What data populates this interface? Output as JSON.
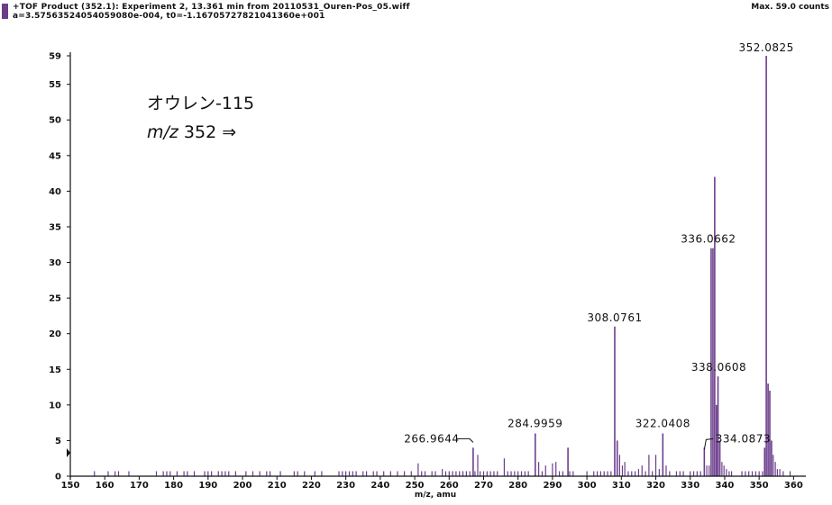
{
  "header": {
    "line1": "+TOF Product (352.1): Experiment 2, 13.361 min from 20110531_Ouren-Pos_05.wiff",
    "line2": "a=3.57563524054059080e-004, t0=-1.16705727821041360e+001",
    "max_counts": "Max. 59.0 counts"
  },
  "annotation": {
    "line1": "オウレン-115",
    "mz_italic": "m/z",
    "line2_rest": " 352 ⇒"
  },
  "colors": {
    "peak": "#6b3e8c",
    "axis": "#111111",
    "header_swatch": "#6a3f86"
  },
  "chart_data": {
    "type": "bar",
    "title": "",
    "xlabel": "m/z, amu",
    "ylabel": "",
    "xlim": [
      150,
      362
    ],
    "ylim": [
      0,
      59
    ],
    "x_ticks": [
      150,
      160,
      170,
      180,
      190,
      200,
      210,
      220,
      230,
      240,
      250,
      260,
      270,
      280,
      290,
      300,
      310,
      320,
      330,
      340,
      350,
      360
    ],
    "y_ticks": [
      0,
      5,
      10,
      15,
      20,
      25,
      30,
      35,
      40,
      45,
      50,
      55,
      59
    ],
    "peaks": [
      {
        "x": 157,
        "y": 0.7
      },
      {
        "x": 161,
        "y": 0.7
      },
      {
        "x": 163,
        "y": 0.7
      },
      {
        "x": 164,
        "y": 0.7
      },
      {
        "x": 167,
        "y": 0.7
      },
      {
        "x": 175,
        "y": 0.7
      },
      {
        "x": 177,
        "y": 0.7
      },
      {
        "x": 178,
        "y": 0.7
      },
      {
        "x": 179,
        "y": 0.7
      },
      {
        "x": 181,
        "y": 0.7
      },
      {
        "x": 183,
        "y": 0.7
      },
      {
        "x": 184,
        "y": 0.7
      },
      {
        "x": 186,
        "y": 0.7
      },
      {
        "x": 189,
        "y": 0.7
      },
      {
        "x": 190,
        "y": 0.7
      },
      {
        "x": 191,
        "y": 0.7
      },
      {
        "x": 193,
        "y": 0.7
      },
      {
        "x": 194,
        "y": 0.7
      },
      {
        "x": 195,
        "y": 0.7
      },
      {
        "x": 196,
        "y": 0.7
      },
      {
        "x": 198,
        "y": 0.7
      },
      {
        "x": 201,
        "y": 0.7
      },
      {
        "x": 203,
        "y": 0.7
      },
      {
        "x": 205,
        "y": 0.7
      },
      {
        "x": 207,
        "y": 0.7
      },
      {
        "x": 208,
        "y": 0.7
      },
      {
        "x": 211,
        "y": 0.7
      },
      {
        "x": 215,
        "y": 0.7
      },
      {
        "x": 216,
        "y": 0.7
      },
      {
        "x": 218,
        "y": 0.7
      },
      {
        "x": 221,
        "y": 0.7
      },
      {
        "x": 223,
        "y": 0.7
      },
      {
        "x": 228,
        "y": 0.7
      },
      {
        "x": 229,
        "y": 0.7
      },
      {
        "x": 230,
        "y": 0.7
      },
      {
        "x": 231,
        "y": 0.7
      },
      {
        "x": 232,
        "y": 0.7
      },
      {
        "x": 233,
        "y": 0.7
      },
      {
        "x": 235,
        "y": 0.7
      },
      {
        "x": 236,
        "y": 0.7
      },
      {
        "x": 238,
        "y": 0.7
      },
      {
        "x": 239,
        "y": 0.7
      },
      {
        "x": 241,
        "y": 0.7
      },
      {
        "x": 243,
        "y": 0.7
      },
      {
        "x": 245,
        "y": 0.7
      },
      {
        "x": 247,
        "y": 0.7
      },
      {
        "x": 249,
        "y": 0.7
      },
      {
        "x": 251,
        "y": 1.8
      },
      {
        "x": 252,
        "y": 0.7
      },
      {
        "x": 253,
        "y": 0.7
      },
      {
        "x": 255,
        "y": 0.7
      },
      {
        "x": 256,
        "y": 0.7
      },
      {
        "x": 258,
        "y": 1.0
      },
      {
        "x": 259,
        "y": 0.7
      },
      {
        "x": 260,
        "y": 0.7
      },
      {
        "x": 261,
        "y": 0.7
      },
      {
        "x": 262,
        "y": 0.7
      },
      {
        "x": 263,
        "y": 0.7
      },
      {
        "x": 264,
        "y": 0.7
      },
      {
        "x": 265,
        "y": 0.7
      },
      {
        "x": 266,
        "y": 0.7
      },
      {
        "x": 266.9644,
        "y": 4.0
      },
      {
        "x": 267.5,
        "y": 0.7
      },
      {
        "x": 268.3,
        "y": 3.0
      },
      {
        "x": 269,
        "y": 0.7
      },
      {
        "x": 270,
        "y": 0.7
      },
      {
        "x": 271,
        "y": 0.7
      },
      {
        "x": 272,
        "y": 0.7
      },
      {
        "x": 273,
        "y": 0.7
      },
      {
        "x": 274,
        "y": 0.7
      },
      {
        "x": 276,
        "y": 2.5
      },
      {
        "x": 277,
        "y": 0.7
      },
      {
        "x": 278,
        "y": 0.7
      },
      {
        "x": 279,
        "y": 0.7
      },
      {
        "x": 280,
        "y": 0.7
      },
      {
        "x": 281,
        "y": 0.7
      },
      {
        "x": 282,
        "y": 0.7
      },
      {
        "x": 283,
        "y": 0.7
      },
      {
        "x": 284.9959,
        "y": 6.0
      },
      {
        "x": 286,
        "y": 2.0
      },
      {
        "x": 287,
        "y": 0.7
      },
      {
        "x": 288,
        "y": 1.5
      },
      {
        "x": 290,
        "y": 1.8
      },
      {
        "x": 291,
        "y": 2.0
      },
      {
        "x": 292,
        "y": 0.7
      },
      {
        "x": 293,
        "y": 0.7
      },
      {
        "x": 294.5,
        "y": 4.0
      },
      {
        "x": 295,
        "y": 0.7
      },
      {
        "x": 296,
        "y": 0.7
      },
      {
        "x": 300,
        "y": 0.7
      },
      {
        "x": 302,
        "y": 0.7
      },
      {
        "x": 303,
        "y": 0.7
      },
      {
        "x": 304,
        "y": 0.7
      },
      {
        "x": 305,
        "y": 0.7
      },
      {
        "x": 306,
        "y": 0.7
      },
      {
        "x": 307,
        "y": 0.7
      },
      {
        "x": 308.0761,
        "y": 21.0
      },
      {
        "x": 308.8,
        "y": 5.0
      },
      {
        "x": 309.5,
        "y": 3.0
      },
      {
        "x": 310.3,
        "y": 1.5
      },
      {
        "x": 311,
        "y": 2.0
      },
      {
        "x": 312,
        "y": 0.7
      },
      {
        "x": 313,
        "y": 0.7
      },
      {
        "x": 314,
        "y": 0.7
      },
      {
        "x": 315,
        "y": 1.0
      },
      {
        "x": 316,
        "y": 1.5
      },
      {
        "x": 317,
        "y": 0.7
      },
      {
        "x": 318,
        "y": 3.0
      },
      {
        "x": 319,
        "y": 0.7
      },
      {
        "x": 320,
        "y": 3.0
      },
      {
        "x": 321,
        "y": 1.0
      },
      {
        "x": 322.0408,
        "y": 6.0
      },
      {
        "x": 323,
        "y": 1.5
      },
      {
        "x": 324,
        "y": 0.7
      },
      {
        "x": 326,
        "y": 0.7
      },
      {
        "x": 327,
        "y": 0.7
      },
      {
        "x": 328,
        "y": 0.7
      },
      {
        "x": 330,
        "y": 0.7
      },
      {
        "x": 331,
        "y": 0.7
      },
      {
        "x": 332,
        "y": 0.7
      },
      {
        "x": 333,
        "y": 0.7
      },
      {
        "x": 334.0873,
        "y": 4.0
      },
      {
        "x": 334.8,
        "y": 1.5
      },
      {
        "x": 335.5,
        "y": 1.5
      },
      {
        "x": 336.0662,
        "y": 32.0
      },
      {
        "x": 336.6,
        "y": 32.0
      },
      {
        "x": 337.1,
        "y": 42.0
      },
      {
        "x": 337.6,
        "y": 10.0
      },
      {
        "x": 338.0608,
        "y": 14.0
      },
      {
        "x": 338.6,
        "y": 5.0
      },
      {
        "x": 339.2,
        "y": 2.0
      },
      {
        "x": 339.8,
        "y": 1.5
      },
      {
        "x": 340.5,
        "y": 1.0
      },
      {
        "x": 341.3,
        "y": 0.7
      },
      {
        "x": 342,
        "y": 0.7
      },
      {
        "x": 345,
        "y": 0.7
      },
      {
        "x": 346,
        "y": 0.7
      },
      {
        "x": 347,
        "y": 0.7
      },
      {
        "x": 348,
        "y": 0.7
      },
      {
        "x": 349,
        "y": 0.7
      },
      {
        "x": 350,
        "y": 0.7
      },
      {
        "x": 351,
        "y": 0.7
      },
      {
        "x": 351.6,
        "y": 4.0
      },
      {
        "x": 352.0825,
        "y": 59.0
      },
      {
        "x": 352.6,
        "y": 13.0
      },
      {
        "x": 353.1,
        "y": 12.0
      },
      {
        "x": 353.6,
        "y": 5.0
      },
      {
        "x": 354.1,
        "y": 3.0
      },
      {
        "x": 354.7,
        "y": 2.0
      },
      {
        "x": 355.3,
        "y": 1.0
      },
      {
        "x": 356,
        "y": 1.0
      },
      {
        "x": 357,
        "y": 0.7
      },
      {
        "x": 359,
        "y": 0.7
      }
    ],
    "peak_labels": [
      {
        "x": 352.0825,
        "y": 59.0,
        "text": "352.0825"
      },
      {
        "x": 336.0662,
        "y": 32.0,
        "text": "336.0662"
      },
      {
        "x": 308.0761,
        "y": 21.0,
        "text": "308.0761"
      },
      {
        "x": 338.0608,
        "y": 14.0,
        "text": "338.0608"
      },
      {
        "x": 284.9959,
        "y": 6.0,
        "text": "284.9959"
      },
      {
        "x": 322.0408,
        "y": 6.0,
        "text": "322.0408"
      },
      {
        "x": 266.9644,
        "y": 4.0,
        "text": "266.9644"
      },
      {
        "x": 334.0873,
        "y": 4.0,
        "text": "334.0873"
      }
    ],
    "grid": false,
    "legend": "none"
  }
}
